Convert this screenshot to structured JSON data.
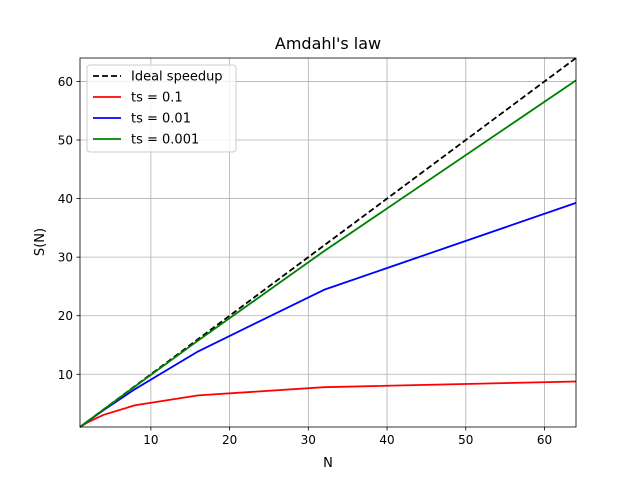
{
  "chart_data": {
    "type": "line",
    "title": "Amdahl's law",
    "xlabel": "N",
    "ylabel": "S(N)",
    "xlim": [
      1,
      64
    ],
    "ylim": [
      1,
      64
    ],
    "xticks": [
      10,
      20,
      30,
      40,
      50,
      60
    ],
    "yticks": [
      10,
      20,
      30,
      40,
      50,
      60
    ],
    "grid": true,
    "legend_position": "top-left",
    "x": [
      1,
      2,
      4,
      8,
      16,
      32,
      64
    ],
    "series": [
      {
        "name": "Ideal speedup",
        "color": "#000000",
        "dash": "dashed",
        "values": [
          1,
          2,
          4,
          8,
          16,
          32,
          64
        ]
      },
      {
        "name": "ts = 0.1",
        "color": "#ff0000",
        "dash": "solid",
        "values": [
          1,
          1.82,
          3.08,
          4.71,
          6.4,
          7.8,
          8.77
        ]
      },
      {
        "name": "ts = 0.01",
        "color": "#0000ff",
        "dash": "solid",
        "values": [
          1,
          1.98,
          3.88,
          7.48,
          13.91,
          24.43,
          39.26
        ]
      },
      {
        "name": "ts = 0.001",
        "color": "#008000",
        "dash": "solid",
        "values": [
          1,
          2.0,
          3.99,
          7.94,
          15.76,
          31.03,
          60.17
        ]
      }
    ]
  }
}
